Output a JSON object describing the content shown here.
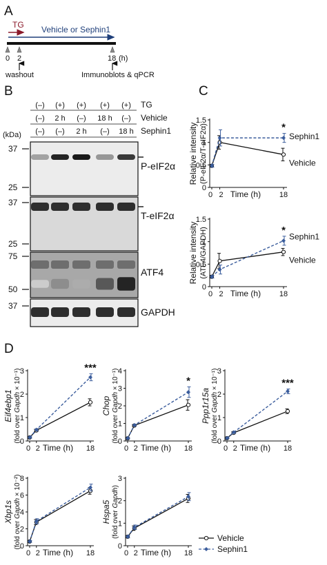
{
  "colors": {
    "vehicle": "#111111",
    "sephin1": "#3a5c9c",
    "tg_arrow": "#8b1a2a",
    "vehicle_arrow": "#1f3f7a"
  },
  "panel_a": {
    "label": "A",
    "tg_label": "TG",
    "treatment_label": "Vehicle or Sephin1",
    "ticks": [
      "0",
      "2",
      "18"
    ],
    "unit": "(h)",
    "washout": "washout",
    "endpoint": "Immunoblots & qPCR"
  },
  "panel_b": {
    "label": "B",
    "kda": "(kDa)",
    "conditions": [
      "TG",
      "Vehicle",
      "Sephin1"
    ],
    "lanes": [
      {
        "tg": "(–)",
        "vehicle": "(–)",
        "sephin1": "(–)"
      },
      {
        "tg": "(+)",
        "vehicle": "2 h",
        "sephin1": "(–)"
      },
      {
        "tg": "(+)",
        "vehicle": "(–)",
        "sephin1": "2 h"
      },
      {
        "tg": "(+)",
        "vehicle": "18 h",
        "sephin1": "(–)"
      },
      {
        "tg": "(+)",
        "vehicle": "(–)",
        "sephin1": "18 h"
      }
    ],
    "blots": [
      {
        "name": "P-eIF2α",
        "markers": [
          "37",
          "25"
        ],
        "bands": [
          0.35,
          0.95,
          1.0,
          0.4,
          0.85
        ]
      },
      {
        "name": "T-eIF2α",
        "markers": [
          "37",
          "25"
        ],
        "bands": [
          0.9,
          0.9,
          0.9,
          0.9,
          0.9
        ]
      },
      {
        "name": "ATF4",
        "markers": [
          "75",
          "50"
        ],
        "bands": [
          0.15,
          0.45,
          0.3,
          0.7,
          0.95
        ]
      },
      {
        "name": "GAPDH",
        "markers": [
          "37"
        ],
        "bands": [
          0.9,
          0.9,
          0.9,
          0.9,
          0.9
        ]
      }
    ]
  },
  "panel_c": {
    "label": "C"
  },
  "panel_d": {
    "label": "D"
  },
  "chart_data": [
    {
      "id": "C1",
      "type": "line",
      "ylabel_lines": [
        "Relative intensity",
        "(P-eIF2α/T-eIF2α)"
      ],
      "xlabel": "Time (h)",
      "x": [
        0,
        2,
        18
      ],
      "xticks": [
        "0",
        "2",
        "18"
      ],
      "ylim": [
        0,
        1.5
      ],
      "yticks": [
        "0",
        "0.5",
        "1",
        "1.5"
      ],
      "series": [
        {
          "name": "Vehicle",
          "values": [
            0.48,
            1.0,
            0.73
          ],
          "errors": [
            0.03,
            0.15,
            0.14
          ]
        },
        {
          "name": "Sephin1",
          "values": [
            0.48,
            1.1,
            1.1
          ],
          "errors": [
            0.03,
            0.18,
            0.1
          ]
        }
      ],
      "annotations": [
        {
          "x": 18,
          "text": "*"
        }
      ]
    },
    {
      "id": "C2",
      "type": "line",
      "ylabel_lines": [
        "Relative intensity",
        "(ATF4/GAPDH)"
      ],
      "xlabel": "Time (h)",
      "x": [
        0,
        2,
        18
      ],
      "xticks": [
        "0",
        "2",
        "18"
      ],
      "ylim": [
        0,
        1.5
      ],
      "yticks": [
        "0",
        "0.5",
        "1",
        "1.5"
      ],
      "series": [
        {
          "name": "Vehicle",
          "values": [
            0.22,
            0.57,
            0.77
          ],
          "errors": [
            0.03,
            0.17,
            0.08
          ]
        },
        {
          "name": "Sephin1",
          "values": [
            0.22,
            0.38,
            1.02
          ],
          "errors": [
            0.03,
            0.1,
            0.1
          ]
        }
      ],
      "annotations": [
        {
          "x": 18,
          "text": "*"
        }
      ]
    },
    {
      "id": "D1",
      "type": "line",
      "gene": "Eif4ebp1",
      "ylabel_pre": "(fold over ",
      "ylabel_gene": "Gapdh",
      "ylabel_post": " × 10⁻¹)",
      "xlabel": "Time (h)",
      "x": [
        0,
        2,
        18
      ],
      "xticks": [
        "0",
        "2",
        "18"
      ],
      "ylim": [
        0,
        3
      ],
      "yticks": [
        "0",
        "1",
        "2",
        "3"
      ],
      "series": [
        {
          "name": "Vehicle",
          "values": [
            0.15,
            0.45,
            1.65
          ],
          "errors": [
            0.03,
            0.05,
            0.15
          ]
        },
        {
          "name": "Sephin1",
          "values": [
            0.15,
            0.48,
            2.72
          ],
          "errors": [
            0.03,
            0.05,
            0.15
          ]
        }
      ],
      "annotations": [
        {
          "x": 18,
          "text": "***"
        }
      ]
    },
    {
      "id": "D2",
      "type": "line",
      "gene": "Chop",
      "ylabel_pre": "(fold over ",
      "ylabel_gene": "Gapdh",
      "ylabel_post": " × 10⁻¹)",
      "xlabel": "Time (h)",
      "x": [
        0,
        2,
        18
      ],
      "xticks": [
        "0",
        "2",
        "18"
      ],
      "ylim": [
        0,
        4
      ],
      "yticks": [
        "0",
        "1",
        "2",
        "3",
        "4"
      ],
      "series": [
        {
          "name": "Vehicle",
          "values": [
            0.15,
            0.88,
            2.05
          ],
          "errors": [
            0.03,
            0.05,
            0.3
          ]
        },
        {
          "name": "Sephin1",
          "values": [
            0.15,
            0.9,
            2.78
          ],
          "errors": [
            0.03,
            0.05,
            0.3
          ]
        }
      ],
      "annotations": [
        {
          "x": 18,
          "text": "*"
        }
      ]
    },
    {
      "id": "D3",
      "type": "line",
      "gene": "Ppp1r15a",
      "ylabel_pre": "(fold over ",
      "ylabel_gene": "Gapdh",
      "ylabel_post": " × 10⁻¹)",
      "xlabel": "Time (h)",
      "x": [
        0,
        2,
        18
      ],
      "xticks": [
        "0",
        "2",
        "18"
      ],
      "ylim": [
        0,
        3
      ],
      "yticks": [
        "0",
        "1",
        "2",
        "3"
      ],
      "series": [
        {
          "name": "Vehicle",
          "values": [
            0.12,
            0.35,
            1.27
          ],
          "errors": [
            0.02,
            0.04,
            0.1
          ]
        },
        {
          "name": "Sephin1",
          "values": [
            0.12,
            0.37,
            2.12
          ],
          "errors": [
            0.02,
            0.04,
            0.1
          ]
        }
      ],
      "annotations": [
        {
          "x": 18,
          "text": "***"
        }
      ]
    },
    {
      "id": "D4",
      "type": "line",
      "gene": "Xbp1s",
      "ylabel_pre": "(fold over ",
      "ylabel_gene": "Gapdh",
      "ylabel_post": " × 10⁻²)",
      "xlabel": "Time (h)",
      "x": [
        0,
        2,
        18
      ],
      "xticks": [
        "0",
        "2",
        "18"
      ],
      "ylim": [
        0,
        8
      ],
      "yticks": [
        "0",
        "2",
        "4",
        "6",
        "8"
      ],
      "series": [
        {
          "name": "Vehicle",
          "values": [
            0.5,
            2.8,
            6.5
          ],
          "errors": [
            0.1,
            0.3,
            0.4
          ]
        },
        {
          "name": "Sephin1",
          "values": [
            0.5,
            2.9,
            6.9
          ],
          "errors": [
            0.1,
            0.3,
            0.4
          ]
        }
      ],
      "annotations": []
    },
    {
      "id": "D5",
      "type": "line",
      "gene": "Hspa5",
      "ylabel_pre": "(fold over ",
      "ylabel_gene": "Gapdh",
      "ylabel_post": ")",
      "xlabel": "Time (h)",
      "x": [
        0,
        2,
        18
      ],
      "xticks": [
        "0",
        "2",
        "18"
      ],
      "ylim": [
        0,
        3
      ],
      "yticks": [
        "0",
        "1",
        "2",
        "3"
      ],
      "series": [
        {
          "name": "Vehicle",
          "values": [
            0.4,
            0.78,
            2.1
          ],
          "errors": [
            0.05,
            0.1,
            0.18
          ]
        },
        {
          "name": "Sephin1",
          "values": [
            0.4,
            0.82,
            2.18
          ],
          "errors": [
            0.05,
            0.1,
            0.18
          ]
        }
      ],
      "annotations": [],
      "legend": {
        "placement": "bottom-right",
        "entries": [
          "Vehicle",
          "Sephin1"
        ]
      }
    }
  ]
}
